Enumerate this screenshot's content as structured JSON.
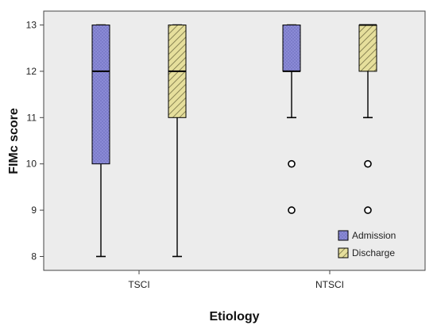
{
  "chart_data": {
    "type": "boxplot",
    "xlabel": "Etiology",
    "ylabel": "FIMc score",
    "ylim": [
      7.7,
      13.3
    ],
    "yticks": [
      8,
      9,
      10,
      11,
      12,
      13
    ],
    "grid": false,
    "legend_position": "bottom-right",
    "categories": [
      "TSCI",
      "NTSCI"
    ],
    "series": [
      {
        "name": "Admission",
        "color": "#8a8ad6",
        "pattern": "dots",
        "boxes": [
          {
            "category": "TSCI",
            "min": 8,
            "q1": 10,
            "median": 12,
            "q3": 13,
            "max": 13,
            "outliers": []
          },
          {
            "category": "NTSCI",
            "min": 11,
            "q1": 12,
            "median": 12,
            "q3": 13,
            "max": 13,
            "outliers": [
              10,
              9
            ]
          }
        ]
      },
      {
        "name": "Discharge",
        "color": "#e6df9c",
        "pattern": "diagonal-hatch",
        "boxes": [
          {
            "category": "TSCI",
            "min": 8,
            "q1": 11,
            "median": 12,
            "q3": 13,
            "max": 13,
            "outliers": []
          },
          {
            "category": "NTSCI",
            "min": 11,
            "q1": 12,
            "median": 13,
            "q3": 13,
            "max": 13,
            "outliers": [
              10,
              9
            ]
          }
        ]
      }
    ]
  }
}
